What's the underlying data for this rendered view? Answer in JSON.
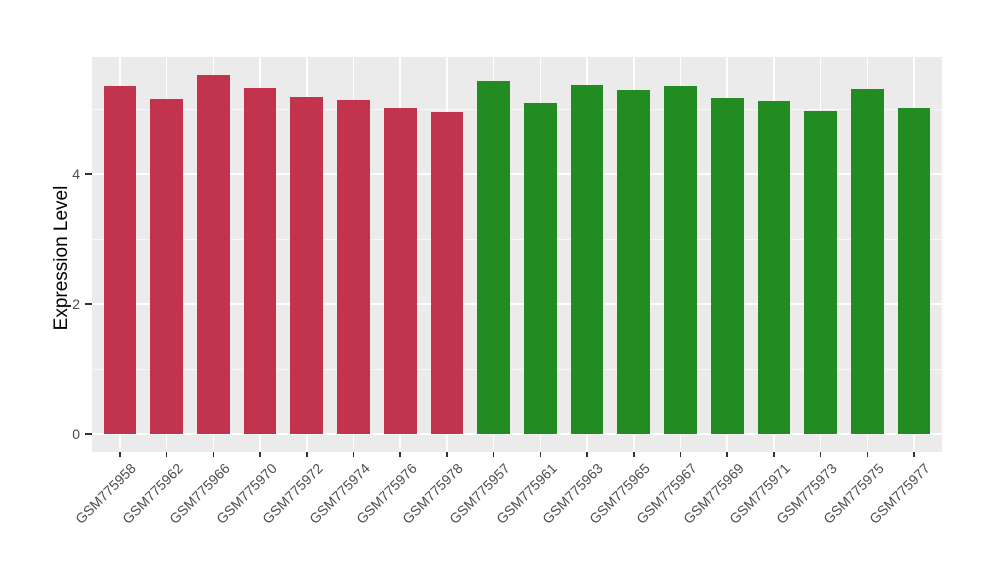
{
  "chart_data": {
    "type": "bar",
    "title": "",
    "xlabel": "",
    "ylabel": "Expression Level",
    "ylim": [
      0,
      5.8
    ],
    "ytick_labels": [
      "0",
      "2",
      "4"
    ],
    "ytick_values": [
      0,
      2,
      4
    ],
    "ytick_minor_values": [
      1,
      3,
      5
    ],
    "grid": "major and minor horizontal white gridlines, vertical white gridline per category",
    "legend_position": "none",
    "panel_background": "#EBEBEB",
    "gridline_color": "#FFFFFF",
    "axis_text_color": "#4D4D4D",
    "axis_title_color": "#000000",
    "categories": [
      "GSM775958",
      "GSM775962",
      "GSM775966",
      "GSM775970",
      "GSM775972",
      "GSM775974",
      "GSM775976",
      "GSM775978",
      "GSM775957",
      "GSM775961",
      "GSM775963",
      "GSM775965",
      "GSM775967",
      "GSM775969",
      "GSM775971",
      "GSM775973",
      "GSM775975",
      "GSM775977"
    ],
    "values": [
      5.35,
      5.15,
      5.52,
      5.33,
      5.19,
      5.14,
      5.01,
      4.95,
      5.43,
      5.09,
      5.37,
      5.3,
      5.36,
      5.17,
      5.12,
      4.97,
      5.31,
      5.02
    ],
    "groups": [
      "group1",
      "group1",
      "group1",
      "group1",
      "group1",
      "group1",
      "group1",
      "group1",
      "group2",
      "group2",
      "group2",
      "group2",
      "group2",
      "group2",
      "group2",
      "group2",
      "group2",
      "group2"
    ],
    "group_colors": {
      "group1": "#C2334E",
      "group2": "#228B22"
    }
  }
}
